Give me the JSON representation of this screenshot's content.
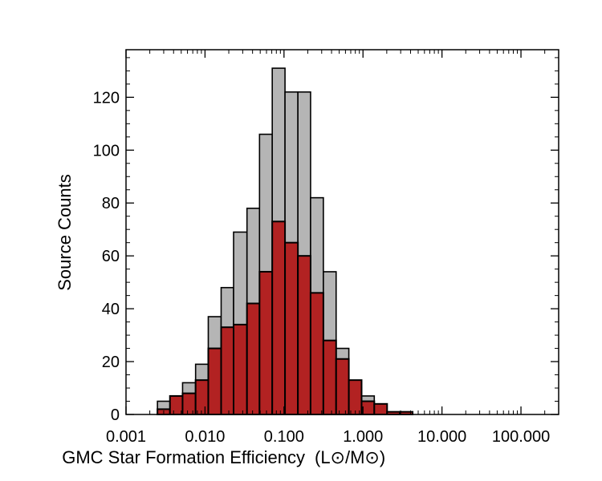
{
  "chart_data": {
    "type": "bar",
    "xscale": "log",
    "xlim": [
      0.001,
      300
    ],
    "ylim": [
      0,
      138
    ],
    "xlabel": "GMC Star Formation Efficiency",
    "xlabel_units": "(L⊙/M⊙)",
    "ylabel": "Source Counts",
    "grid": false,
    "x_ticks": [
      {
        "value": 0.001,
        "label": "0.001"
      },
      {
        "value": 0.01,
        "label": "0.010"
      },
      {
        "value": 0.1,
        "label": "0.100"
      },
      {
        "value": 1,
        "label": "1.000"
      },
      {
        "value": 10,
        "label": "10.000"
      },
      {
        "value": 100,
        "label": "100.000"
      }
    ],
    "y_ticks": [
      0,
      20,
      40,
      60,
      80,
      100,
      120
    ],
    "bin_edges": [
      0.0025,
      0.0036,
      0.0052,
      0.0076,
      0.011,
      0.016,
      0.023,
      0.034,
      0.049,
      0.071,
      0.103,
      0.15,
      0.217,
      0.315,
      0.457,
      0.662,
      0.96,
      1.39,
      2.02,
      2.93,
      4.25,
      6.16,
      8.93,
      12.95,
      18.8,
      27.2,
      39.5,
      57.2
    ],
    "series": [
      {
        "color": "#b5b5b5",
        "values": [
          5,
          7,
          12,
          19,
          37,
          48,
          69,
          78,
          106,
          131,
          122,
          122,
          82,
          54,
          25,
          10,
          7,
          1,
          0,
          0,
          0,
          0,
          0,
          0,
          0,
          0,
          0
        ]
      },
      {
        "color": "#b22222",
        "values": [
          2,
          7,
          8,
          13,
          25,
          33,
          34,
          42,
          54,
          73,
          65,
          60,
          46,
          28,
          21,
          13,
          5,
          4,
          1,
          1,
          0,
          0,
          0,
          0,
          0,
          0,
          0
        ]
      }
    ]
  }
}
